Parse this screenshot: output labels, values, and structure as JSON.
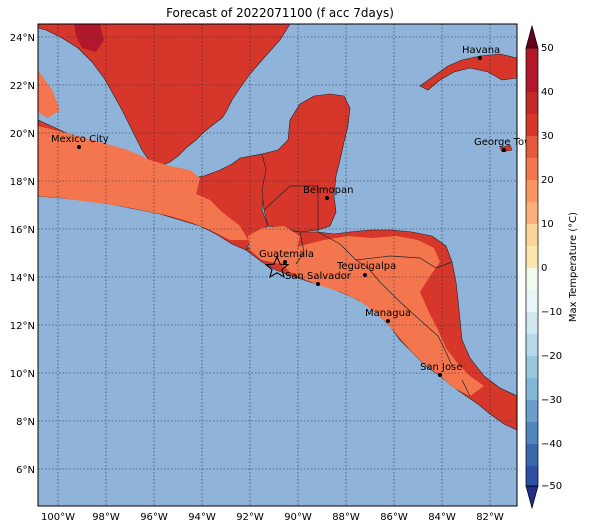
{
  "title": "Forecast of 2022071100 (f acc 7days)",
  "map": {
    "lon_range": [
      -101,
      -81
    ],
    "lat_range": [
      4.5,
      24.5
    ],
    "lat_ticks": [
      "24°N",
      "22°N",
      "20°N",
      "18°N",
      "16°N",
      "14°N",
      "12°N",
      "10°N",
      "8°N",
      "6°N"
    ],
    "lon_ticks": [
      "100°W",
      "98°W",
      "96°W",
      "94°W",
      "92°W",
      "90°W",
      "88°W",
      "86°W",
      "84°W",
      "82°W"
    ],
    "ocean_color": "#8fb3d9",
    "gridlines": "dotted",
    "cities": [
      {
        "name": "Havana",
        "lon": -82.4,
        "lat": 23.1
      },
      {
        "name": "Mexico City",
        "lon": -99.1,
        "lat": 19.4
      },
      {
        "name": "George Tow",
        "lon": -81.4,
        "lat": 19.3
      },
      {
        "name": "Belmopan",
        "lon": -88.8,
        "lat": 17.25
      },
      {
        "name": "Guatemala",
        "lon": -90.5,
        "lat": 14.6
      },
      {
        "name": "San Salvador",
        "lon": -89.2,
        "lat": 13.7
      },
      {
        "name": "Tegucigalpa",
        "lon": -87.2,
        "lat": 14.1
      },
      {
        "name": "Managua",
        "lon": -86.3,
        "lat": 12.1
      },
      {
        "name": "San Jose",
        "lon": -84.1,
        "lat": 9.9
      }
    ],
    "star_marker": {
      "lon": -90.8,
      "lat": 14.4
    }
  },
  "colorbar": {
    "label": "Max Temperature (°C)",
    "ticks": [
      "50",
      "40",
      "30",
      "20",
      "10",
      "0",
      "−10",
      "−20",
      "−30",
      "−40",
      "−50"
    ],
    "colors": [
      "#67001f",
      "#b2182b",
      "#d6372a",
      "#f4764f",
      "#fcae7c",
      "#fee7ac",
      "#e9f5f7",
      "#b5d9ea",
      "#84b6d8",
      "#4f87bd",
      "#2f4fa2",
      "#1e2f8a"
    ]
  }
}
